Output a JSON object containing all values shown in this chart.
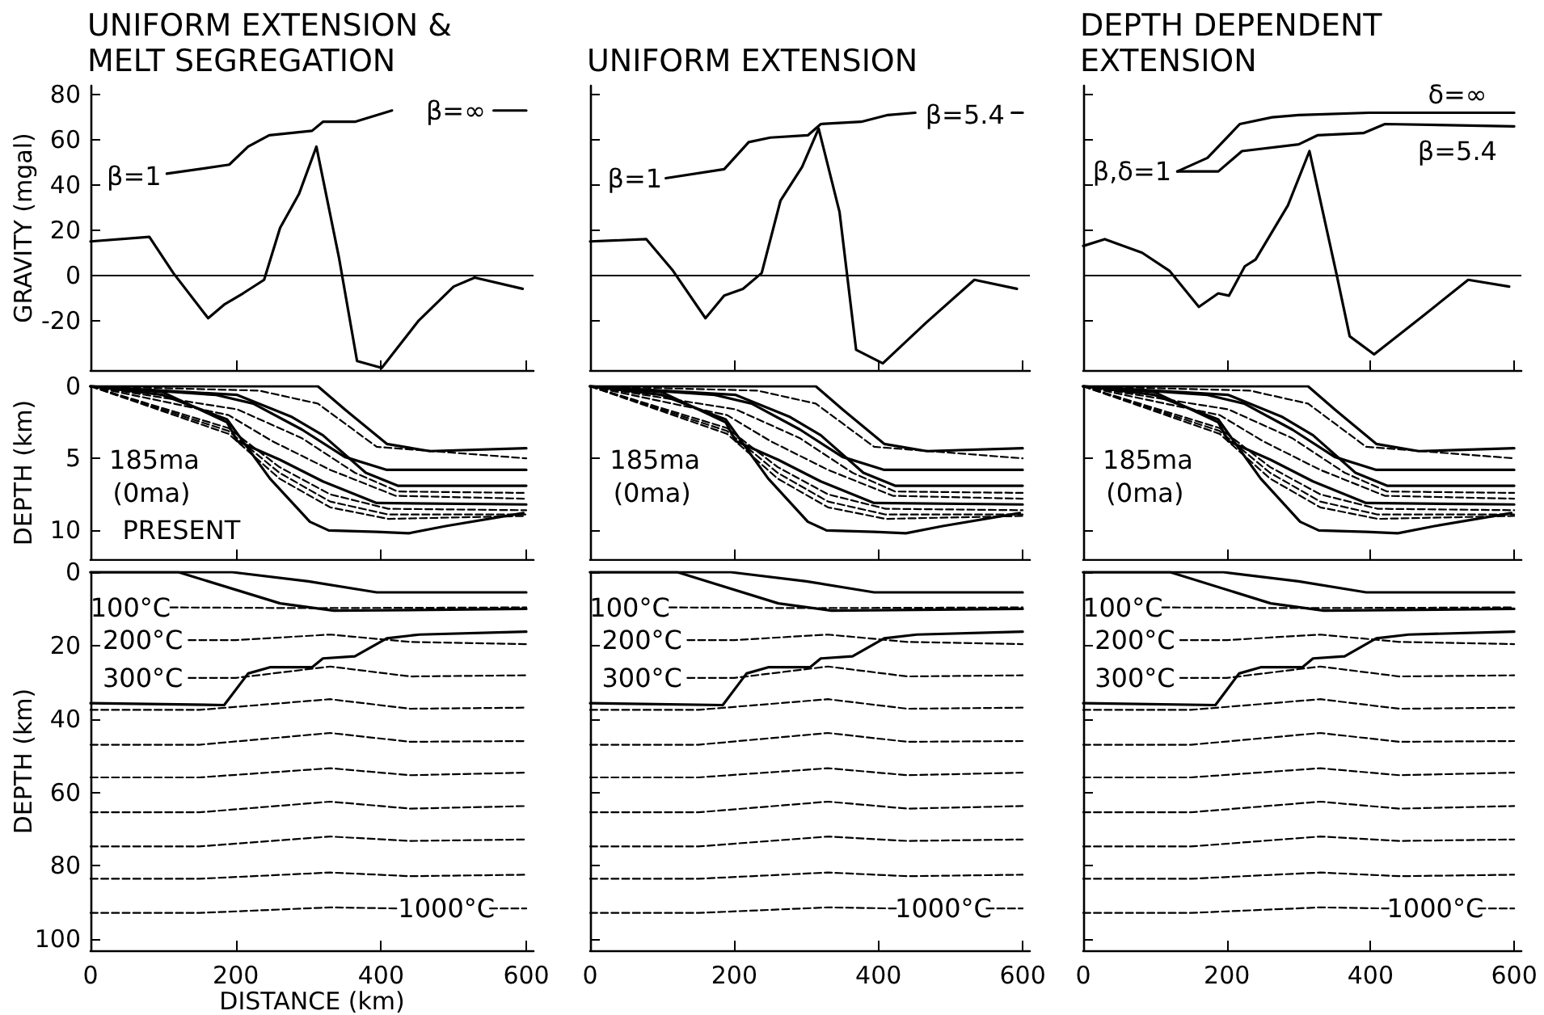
{
  "chart_data": [
    {
      "type": "line",
      "title": "UNIFORM EXTENSION & MELT SEGREGATION",
      "ylabel": "GRAVITY (mgal)",
      "xlim": [
        0,
        610
      ],
      "xticks": [
        0,
        200,
        400,
        600
      ],
      "ylim": [
        -42,
        84
      ],
      "yticks": [
        -20,
        0,
        20,
        40,
        60,
        80
      ],
      "tick_labels": "y",
      "grid": false,
      "line_style": "solid",
      "ref_lines": [
        {
          "axis": "y",
          "value": 0,
          "color": "#000000"
        }
      ],
      "annotations": [
        "β=1",
        "β=∞"
      ],
      "series": [
        {
          "color": "#000000",
          "x": [
            0,
            81,
            114,
            162,
            184,
            210,
            239,
            261,
            287,
            311,
            342,
            367,
            401,
            452,
            500,
            529,
            595
          ],
          "values": [
            15,
            17,
            1,
            -19,
            -13,
            -8,
            -2,
            21,
            36,
            57,
            8,
            -38,
            -41,
            -20,
            -5,
            -1,
            -6
          ]
        },
        {
          "color": "#000000",
          "x": [
            105,
            191,
            217,
            246,
            305,
            320,
            364,
            415,
            450,
            555,
            600
          ],
          "values": [
            45,
            49,
            57,
            62,
            64,
            68,
            68,
            73,
            null,
            73,
            73
          ]
        }
      ]
    },
    {
      "type": "line",
      "title": "UNIFORM EXTENSION",
      "xlim": [
        0,
        610
      ],
      "xticks": [
        0,
        200,
        400,
        600
      ],
      "ylim": [
        -42,
        84
      ],
      "yticks": [
        -20,
        0,
        20,
        40,
        60,
        80
      ],
      "tick_labels": false,
      "grid": false,
      "line_style": "solid",
      "ref_lines": [
        {
          "axis": "y",
          "value": 0,
          "color": "#000000"
        }
      ],
      "annotations": [
        "β=1",
        "β=5.4"
      ],
      "series": [
        {
          "color": "#000000",
          "x": [
            0,
            78,
            115,
            160,
            186,
            212,
            238,
            264,
            294,
            317,
            346,
            369,
            406,
            466,
            533,
            592
          ],
          "values": [
            15,
            16,
            2,
            -19,
            -9,
            -6,
            1,
            33,
            48,
            65,
            28,
            -33,
            -39,
            -21,
            -2,
            -6
          ]
        },
        {
          "color": "#000000",
          "x": [
            105,
            186,
            220,
            250,
            302,
            320,
            376,
            413,
            451,
            458,
            585,
            600
          ],
          "values": [
            43,
            47,
            59,
            61,
            62,
            67,
            68,
            71,
            72,
            null,
            72,
            72
          ]
        }
      ]
    },
    {
      "type": "line",
      "title": "DEPTH DEPENDENT EXTENSION",
      "xlim": [
        0,
        610
      ],
      "xticks": [
        0,
        200,
        400,
        600
      ],
      "ylim": [
        -42,
        84
      ],
      "yticks": [
        -20,
        0,
        20,
        40,
        60,
        80
      ],
      "tick_labels": false,
      "grid": false,
      "line_style": "solid",
      "ref_lines": [
        {
          "axis": "y",
          "value": 0,
          "color": "#000000"
        }
      ],
      "annotations": [
        "β,δ=1",
        "δ=∞",
        "β=5.4"
      ],
      "series": [
        {
          "color": "#000000",
          "x": [
            0,
            30,
            82,
            120,
            161,
            188,
            203,
            225,
            240,
            285,
            315,
            353,
            371,
            405,
            473,
            536,
            593
          ],
          "values": [
            13,
            16,
            10,
            2,
            -14,
            -8,
            -9,
            4,
            7,
            31,
            55,
            0,
            -27,
            -35,
            -18,
            -2,
            -5
          ]
        },
        {
          "color": "#000000",
          "x": [
            131,
            173,
            218,
            263,
            300,
            398,
            600
          ],
          "values": [
            46,
            52,
            67,
            70,
            71,
            72,
            72
          ]
        },
        {
          "color": "#000000",
          "x": [
            131,
            188,
            221,
            300,
            326,
            390,
            420,
            600
          ],
          "values": [
            46,
            46,
            55,
            58,
            62,
            63,
            67,
            66
          ]
        }
      ]
    },
    {
      "type": "line",
      "ylabel": "DEPTH (km)",
      "xlim": [
        0,
        610
      ],
      "xticks": [
        0,
        200,
        400,
        600
      ],
      "ylim": [
        12,
        0
      ],
      "yticks": [
        0,
        5,
        10
      ],
      "tick_labels": "y",
      "grid": false,
      "annotations": [
        "185ma",
        "(0ma)",
        "PRESENT"
      ],
      "series": [
        {
          "color": "#000000",
          "line_style": "solid",
          "x": [
            0,
            313,
            350,
            408,
            467,
            600
          ],
          "values": [
            0,
            0,
            1.6,
            4,
            4.5,
            4.3
          ]
        },
        {
          "color": "#000000",
          "line_style": "dashed",
          "x": [
            0,
            232,
            313,
            394,
            600
          ],
          "values": [
            0,
            0.3,
            1.2,
            4.2,
            5.0
          ]
        },
        {
          "color": "#000000",
          "line_style": "solid",
          "x": [
            0,
            173,
            224,
            291,
            350,
            408,
            600
          ],
          "values": [
            0,
            0.6,
            1.2,
            3.0,
            4.9,
            5.8,
            5.8
          ]
        },
        {
          "color": "#000000",
          "line_style": "solid",
          "x": [
            0,
            99,
            202,
            276,
            320,
            379,
            423,
            600
          ],
          "values": [
            0,
            0.3,
            0.6,
            2.1,
            3.4,
            6,
            6.9,
            6.9
          ]
        },
        {
          "color": "#000000",
          "line_style": "dashed",
          "x": [
            0,
            202,
            291,
            364,
            423,
            600
          ],
          "values": [
            0,
            1.6,
            3.6,
            6,
            7.3,
            7.4
          ]
        },
        {
          "color": "#000000",
          "line_style": "dashed",
          "x": [
            0,
            190,
            250,
            330,
            420,
            600
          ],
          "values": [
            0,
            2.0,
            3.8,
            5.8,
            7.6,
            7.8
          ]
        },
        {
          "color": "#000000",
          "line_style": "solid",
          "x": [
            0,
            99,
            188,
            202,
            261,
            320,
            394,
            600
          ],
          "values": [
            0,
            0.4,
            2.5,
            3.8,
            5.1,
            6.6,
            8.1,
            8.2
          ]
        },
        {
          "color": "#000000",
          "line_style": "dashed",
          "x": [
            0,
            190,
            260,
            330,
            410,
            600
          ],
          "values": [
            0,
            2.9,
            5.6,
            7.5,
            8.5,
            8.6
          ]
        },
        {
          "color": "#000000",
          "line_style": "dashed",
          "x": [
            0,
            190,
            260,
            330,
            410,
            600
          ],
          "values": [
            0,
            3.1,
            6.0,
            8.0,
            8.9,
            8.9
          ]
        },
        {
          "color": "#000000",
          "line_style": "dashed",
          "x": [
            0,
            190,
            260,
            330,
            410,
            600
          ],
          "values": [
            0,
            3.3,
            6.4,
            8.4,
            9.2,
            9.0
          ]
        },
        {
          "color": "#000000",
          "line_style": "solid",
          "x": [
            0,
            99,
            188,
            247,
            302,
            328,
            394,
            438,
            489,
            596
          ],
          "values": [
            0,
            0.6,
            2.3,
            6.4,
            9.4,
            10,
            10.1,
            10.2,
            9.7,
            8.8
          ]
        }
      ]
    },
    {
      "type": "line",
      "xlim": [
        0,
        610
      ],
      "xticks": [
        0,
        200,
        400,
        600
      ],
      "ylim": [
        12,
        0
      ],
      "yticks": [
        0,
        5,
        10
      ],
      "tick_labels": false,
      "grid": false,
      "annotations": [
        "185ma",
        "(0ma)"
      ],
      "series": [
        {
          "color": "#000000",
          "line_style": "solid",
          "x": [
            0,
            313,
            350,
            408,
            467,
            600
          ],
          "values": [
            0,
            0,
            1.6,
            4,
            4.5,
            4.3
          ]
        },
        {
          "color": "#000000",
          "line_style": "dashed",
          "x": [
            0,
            232,
            313,
            394,
            600
          ],
          "values": [
            0,
            0.3,
            1.2,
            4.2,
            5.0
          ]
        },
        {
          "color": "#000000",
          "line_style": "solid",
          "x": [
            0,
            173,
            224,
            291,
            350,
            408,
            600
          ],
          "values": [
            0,
            0.6,
            1.2,
            3.0,
            4.9,
            5.8,
            5.8
          ]
        },
        {
          "color": "#000000",
          "line_style": "solid",
          "x": [
            0,
            99,
            202,
            276,
            320,
            379,
            423,
            600
          ],
          "values": [
            0,
            0.3,
            0.6,
            2.1,
            3.4,
            6,
            6.9,
            6.9
          ]
        },
        {
          "color": "#000000",
          "line_style": "dashed",
          "x": [
            0,
            202,
            291,
            364,
            423,
            600
          ],
          "values": [
            0,
            1.6,
            3.6,
            6,
            7.3,
            7.4
          ]
        },
        {
          "color": "#000000",
          "line_style": "dashed",
          "x": [
            0,
            190,
            250,
            330,
            420,
            600
          ],
          "values": [
            0,
            2.0,
            3.8,
            5.8,
            7.6,
            7.8
          ]
        },
        {
          "color": "#000000",
          "line_style": "solid",
          "x": [
            0,
            99,
            188,
            202,
            261,
            320,
            394,
            600
          ],
          "values": [
            0,
            0.4,
            2.5,
            3.8,
            5.1,
            6.6,
            8.1,
            8.2
          ]
        },
        {
          "color": "#000000",
          "line_style": "dashed",
          "x": [
            0,
            190,
            260,
            330,
            410,
            600
          ],
          "values": [
            0,
            2.9,
            5.6,
            7.5,
            8.5,
            8.6
          ]
        },
        {
          "color": "#000000",
          "line_style": "dashed",
          "x": [
            0,
            190,
            260,
            330,
            410,
            600
          ],
          "values": [
            0,
            3.1,
            6.0,
            8.0,
            8.9,
            8.9
          ]
        },
        {
          "color": "#000000",
          "line_style": "dashed",
          "x": [
            0,
            190,
            260,
            330,
            410,
            600
          ],
          "values": [
            0,
            3.3,
            6.4,
            8.4,
            9.2,
            9.0
          ]
        },
        {
          "color": "#000000",
          "line_style": "solid",
          "x": [
            0,
            99,
            188,
            247,
            302,
            328,
            394,
            438,
            489,
            596
          ],
          "values": [
            0,
            0.6,
            2.3,
            6.4,
            9.4,
            10,
            10.1,
            10.2,
            9.7,
            8.8
          ]
        }
      ]
    },
    {
      "type": "line",
      "xlim": [
        0,
        610
      ],
      "xticks": [
        0,
        200,
        400,
        600
      ],
      "ylim": [
        12,
        0
      ],
      "yticks": [
        0,
        5,
        10
      ],
      "tick_labels": false,
      "grid": false,
      "annotations": [
        "185ma",
        "(0ma)"
      ],
      "series": [
        {
          "color": "#000000",
          "line_style": "solid",
          "x": [
            0,
            313,
            350,
            408,
            467,
            600
          ],
          "values": [
            0,
            0,
            1.6,
            4,
            4.5,
            4.3
          ]
        },
        {
          "color": "#000000",
          "line_style": "dashed",
          "x": [
            0,
            232,
            313,
            394,
            600
          ],
          "values": [
            0,
            0.3,
            1.2,
            4.2,
            5.0
          ]
        },
        {
          "color": "#000000",
          "line_style": "solid",
          "x": [
            0,
            173,
            224,
            291,
            350,
            408,
            600
          ],
          "values": [
            0,
            0.6,
            1.2,
            3.0,
            4.9,
            5.8,
            5.8
          ]
        },
        {
          "color": "#000000",
          "line_style": "solid",
          "x": [
            0,
            99,
            202,
            276,
            320,
            379,
            423,
            600
          ],
          "values": [
            0,
            0.3,
            0.6,
            2.1,
            3.4,
            6,
            6.9,
            6.9
          ]
        },
        {
          "color": "#000000",
          "line_style": "dashed",
          "x": [
            0,
            202,
            291,
            364,
            423,
            600
          ],
          "values": [
            0,
            1.6,
            3.6,
            6,
            7.3,
            7.4
          ]
        },
        {
          "color": "#000000",
          "line_style": "dashed",
          "x": [
            0,
            190,
            250,
            330,
            420,
            600
          ],
          "values": [
            0,
            2.0,
            3.8,
            5.8,
            7.6,
            7.8
          ]
        },
        {
          "color": "#000000",
          "line_style": "solid",
          "x": [
            0,
            99,
            188,
            202,
            261,
            320,
            394,
            600
          ],
          "values": [
            0,
            0.4,
            2.5,
            3.8,
            5.1,
            6.6,
            8.1,
            8.2
          ]
        },
        {
          "color": "#000000",
          "line_style": "dashed",
          "x": [
            0,
            190,
            260,
            330,
            410,
            600
          ],
          "values": [
            0,
            2.9,
            5.6,
            7.5,
            8.5,
            8.6
          ]
        },
        {
          "color": "#000000",
          "line_style": "dashed",
          "x": [
            0,
            190,
            260,
            330,
            410,
            600
          ],
          "values": [
            0,
            3.1,
            6.0,
            8.0,
            8.9,
            8.9
          ]
        },
        {
          "color": "#000000",
          "line_style": "dashed",
          "x": [
            0,
            190,
            260,
            330,
            410,
            600
          ],
          "values": [
            0,
            3.3,
            6.4,
            8.4,
            9.2,
            9.0
          ]
        },
        {
          "color": "#000000",
          "line_style": "solid",
          "x": [
            0,
            99,
            188,
            247,
            302,
            328,
            394,
            438,
            489,
            596
          ],
          "values": [
            0,
            0.6,
            2.3,
            6.4,
            9.4,
            10,
            10.1,
            10.2,
            9.7,
            8.8
          ]
        }
      ]
    },
    {
      "type": "line",
      "ylabel": "DEPTH (km)",
      "xlabel": "DISTANCE (km)",
      "xlim": [
        0,
        610
      ],
      "xticks": [
        0,
        200,
        400,
        600
      ],
      "ylim": [
        103,
        0
      ],
      "yticks": [
        0,
        20,
        40,
        60,
        80,
        100
      ],
      "grid": false,
      "annotations": [
        "100°C",
        "200°C",
        "300°C",
        "1000°C"
      ],
      "series": [
        {
          "color": "#000000",
          "line_style": "solid",
          "x": [
            0,
            195,
            300,
            394,
            600
          ],
          "values": [
            0,
            0,
            2.5,
            5.5,
            5.5
          ]
        },
        {
          "color": "#000000",
          "line_style": "solid",
          "x": [
            0,
            121,
            261,
            335,
            600
          ],
          "values": [
            0,
            0,
            8.5,
            10.5,
            10
          ]
        },
        {
          "color": "#000000",
          "line_style": "solid",
          "x": [
            0,
            184,
            217,
            247,
            305,
            320,
            364,
            408,
            453,
            600
          ],
          "values": [
            35.7,
            36.2,
            27.6,
            25.9,
            25.9,
            23.5,
            22.9,
            18,
            17,
            16.2
          ]
        },
        {
          "color": "#000000",
          "line_style": "dashed",
          "x": [
            110,
            300,
            600
          ],
          "values": [
            9.6,
            9.8,
            9.6
          ]
        },
        {
          "color": "#000000",
          "line_style": "dashed",
          "x": [
            135,
            200,
            330,
            440,
            600
          ],
          "values": [
            18.5,
            18.5,
            17,
            19,
            19.6
          ]
        },
        {
          "color": "#000000",
          "line_style": "dashed",
          "x": [
            135,
            200,
            330,
            440,
            600
          ],
          "values": [
            28.8,
            28.8,
            25.7,
            28.4,
            28.1
          ]
        },
        {
          "color": "#000000",
          "line_style": "dashed",
          "x": [
            0,
            150,
            330,
            440,
            600
          ],
          "values": [
            37.5,
            37.5,
            34.6,
            37.2,
            36.9
          ]
        },
        {
          "color": "#000000",
          "line_style": "dashed",
          "x": [
            0,
            150,
            330,
            440,
            600
          ],
          "values": [
            47,
            47,
            43.8,
            46.2,
            46
          ]
        },
        {
          "color": "#000000",
          "line_style": "dashed",
          "x": [
            0,
            150,
            330,
            440,
            600
          ],
          "values": [
            55.9,
            55.9,
            53.4,
            55.3,
            54.6
          ]
        },
        {
          "color": "#000000",
          "line_style": "dashed",
          "x": [
            0,
            150,
            330,
            440,
            600
          ],
          "values": [
            65.4,
            65.4,
            62.5,
            64.4,
            63.7
          ]
        },
        {
          "color": "#000000",
          "line_style": "dashed",
          "x": [
            0,
            150,
            330,
            440,
            600
          ],
          "values": [
            74.7,
            74.7,
            72,
            73.2,
            72.8
          ]
        },
        {
          "color": "#000000",
          "line_style": "dashed",
          "x": [
            0,
            150,
            330,
            440,
            600
          ],
          "values": [
            83.5,
            83.5,
            81.8,
            82.8,
            82.4
          ]
        },
        {
          "color": "#000000",
          "line_style": "dashed",
          "x": [
            0,
            150,
            330,
            425,
            432,
            550,
            600
          ],
          "values": [
            92.8,
            92.8,
            91.3,
            91.6,
            null,
            91.6,
            91.6
          ]
        }
      ]
    },
    {
      "type": "line",
      "xlim": [
        0,
        610
      ],
      "xticks": [
        0,
        200,
        400,
        600
      ],
      "ylim": [
        103,
        0
      ],
      "yticks": [
        0,
        20,
        40,
        60,
        80,
        100
      ],
      "tick_labels": "x",
      "grid": false,
      "annotations": [
        "100°C",
        "200°C",
        "300°C",
        "1000°C"
      ],
      "series": [
        {
          "color": "#000000",
          "line_style": "solid",
          "x": [
            0,
            195,
            300,
            394,
            600
          ],
          "values": [
            0,
            0,
            2.5,
            5.5,
            5.5
          ]
        },
        {
          "color": "#000000",
          "line_style": "solid",
          "x": [
            0,
            121,
            261,
            335,
            600
          ],
          "values": [
            0,
            0,
            8.5,
            10.5,
            10
          ]
        },
        {
          "color": "#000000",
          "line_style": "solid",
          "x": [
            0,
            184,
            217,
            247,
            305,
            320,
            364,
            408,
            453,
            600
          ],
          "values": [
            35.7,
            36.2,
            27.6,
            25.9,
            25.9,
            23.5,
            22.9,
            18,
            17,
            16.2
          ]
        },
        {
          "color": "#000000",
          "line_style": "dashed",
          "x": [
            110,
            300,
            600
          ],
          "values": [
            9.6,
            9.8,
            9.6
          ]
        },
        {
          "color": "#000000",
          "line_style": "dashed",
          "x": [
            135,
            200,
            330,
            440,
            600
          ],
          "values": [
            18.5,
            18.5,
            17,
            19,
            19.6
          ]
        },
        {
          "color": "#000000",
          "line_style": "dashed",
          "x": [
            135,
            200,
            330,
            440,
            600
          ],
          "values": [
            28.8,
            28.8,
            25.7,
            28.4,
            28.1
          ]
        },
        {
          "color": "#000000",
          "line_style": "dashed",
          "x": [
            0,
            150,
            330,
            440,
            600
          ],
          "values": [
            37.5,
            37.5,
            34.6,
            37.2,
            36.9
          ]
        },
        {
          "color": "#000000",
          "line_style": "dashed",
          "x": [
            0,
            150,
            330,
            440,
            600
          ],
          "values": [
            47,
            47,
            43.8,
            46.2,
            46
          ]
        },
        {
          "color": "#000000",
          "line_style": "dashed",
          "x": [
            0,
            150,
            330,
            440,
            600
          ],
          "values": [
            55.9,
            55.9,
            53.4,
            55.3,
            54.6
          ]
        },
        {
          "color": "#000000",
          "line_style": "dashed",
          "x": [
            0,
            150,
            330,
            440,
            600
          ],
          "values": [
            65.4,
            65.4,
            62.5,
            64.4,
            63.7
          ]
        },
        {
          "color": "#000000",
          "line_style": "dashed",
          "x": [
            0,
            150,
            330,
            440,
            600
          ],
          "values": [
            74.7,
            74.7,
            72,
            73.2,
            72.8
          ]
        },
        {
          "color": "#000000",
          "line_style": "dashed",
          "x": [
            0,
            150,
            330,
            440,
            600
          ],
          "values": [
            83.5,
            83.5,
            81.8,
            82.8,
            82.4
          ]
        },
        {
          "color": "#000000",
          "line_style": "dashed",
          "x": [
            0,
            150,
            330,
            425,
            432,
            550,
            600
          ],
          "values": [
            92.8,
            92.8,
            91.3,
            91.6,
            null,
            91.6,
            91.6
          ]
        }
      ]
    },
    {
      "type": "line",
      "xlim": [
        0,
        610
      ],
      "xticks": [
        0,
        200,
        400,
        600
      ],
      "ylim": [
        103,
        0
      ],
      "yticks": [
        0,
        20,
        40,
        60,
        80,
        100
      ],
      "tick_labels": "x",
      "grid": false,
      "annotations": [
        "100°C",
        "200°C",
        "300°C",
        "1000°C"
      ],
      "series": [
        {
          "color": "#000000",
          "line_style": "solid",
          "x": [
            0,
            195,
            300,
            394,
            600
          ],
          "values": [
            0,
            0,
            2.5,
            5.5,
            5.5
          ]
        },
        {
          "color": "#000000",
          "line_style": "solid",
          "x": [
            0,
            121,
            261,
            335,
            600
          ],
          "values": [
            0,
            0,
            8.5,
            10.5,
            10
          ]
        },
        {
          "color": "#000000",
          "line_style": "solid",
          "x": [
            0,
            184,
            217,
            247,
            305,
            320,
            364,
            408,
            453,
            600
          ],
          "values": [
            35.7,
            36.2,
            27.6,
            25.9,
            25.9,
            23.5,
            22.9,
            18,
            17,
            16.2
          ]
        },
        {
          "color": "#000000",
          "line_style": "dashed",
          "x": [
            110,
            300,
            600
          ],
          "values": [
            9.6,
            9.8,
            9.6
          ]
        },
        {
          "color": "#000000",
          "line_style": "dashed",
          "x": [
            135,
            200,
            330,
            440,
            600
          ],
          "values": [
            18.5,
            18.5,
            17,
            19,
            19.6
          ]
        },
        {
          "color": "#000000",
          "line_style": "dashed",
          "x": [
            135,
            200,
            330,
            440,
            600
          ],
          "values": [
            28.8,
            28.8,
            25.7,
            28.4,
            28.1
          ]
        },
        {
          "color": "#000000",
          "line_style": "dashed",
          "x": [
            0,
            150,
            330,
            440,
            600
          ],
          "values": [
            37.5,
            37.5,
            34.6,
            37.2,
            36.9
          ]
        },
        {
          "color": "#000000",
          "line_style": "dashed",
          "x": [
            0,
            150,
            330,
            440,
            600
          ],
          "values": [
            47,
            47,
            43.8,
            46.2,
            46
          ]
        },
        {
          "color": "#000000",
          "line_style": "dashed",
          "x": [
            0,
            150,
            330,
            440,
            600
          ],
          "values": [
            55.9,
            55.9,
            53.4,
            55.3,
            54.6
          ]
        },
        {
          "color": "#000000",
          "line_style": "dashed",
          "x": [
            0,
            150,
            330,
            440,
            600
          ],
          "values": [
            65.4,
            65.4,
            62.5,
            64.4,
            63.7
          ]
        },
        {
          "color": "#000000",
          "line_style": "dashed",
          "x": [
            0,
            150,
            330,
            440,
            600
          ],
          "values": [
            74.7,
            74.7,
            72,
            73.2,
            72.8
          ]
        },
        {
          "color": "#000000",
          "line_style": "dashed",
          "x": [
            0,
            150,
            330,
            440,
            600
          ],
          "values": [
            83.5,
            83.5,
            81.8,
            82.8,
            82.4
          ]
        },
        {
          "color": "#000000",
          "line_style": "dashed",
          "x": [
            0,
            150,
            330,
            425,
            432,
            550,
            600
          ],
          "values": [
            92.8,
            92.8,
            91.3,
            91.6,
            null,
            91.6,
            91.6
          ]
        }
      ]
    }
  ]
}
